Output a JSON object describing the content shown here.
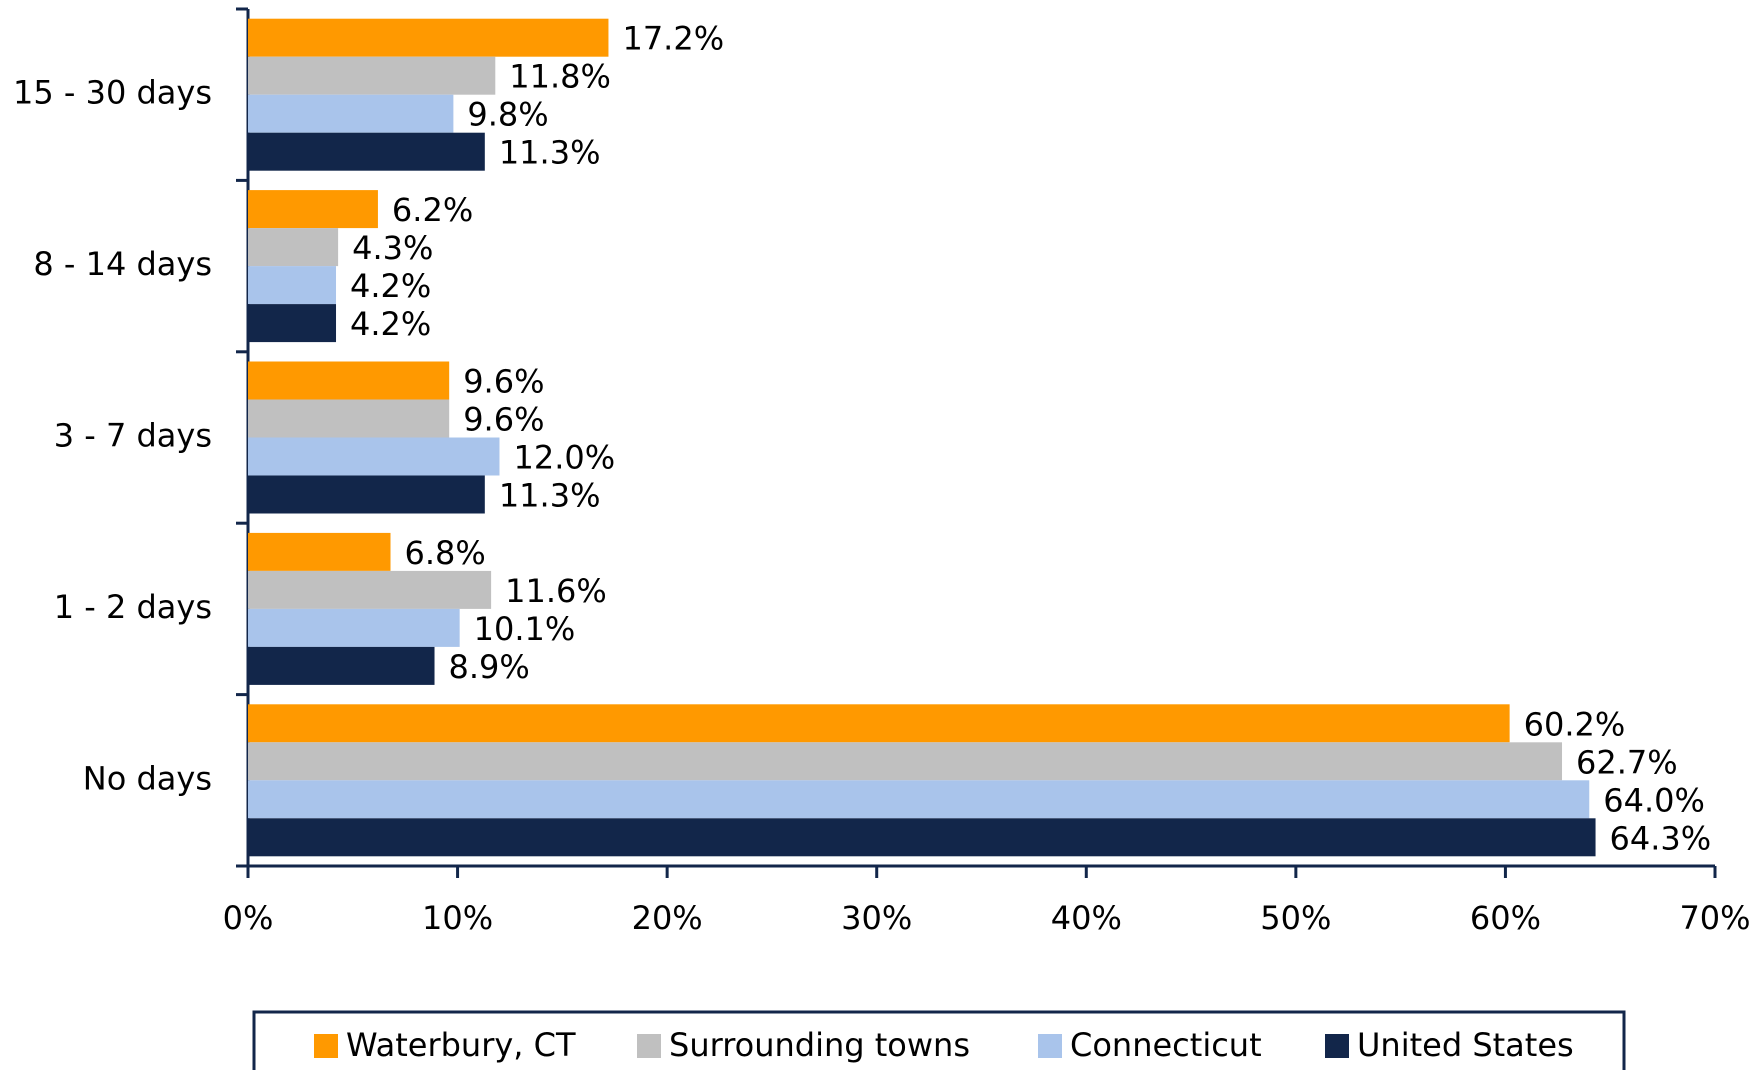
{
  "chart_data": {
    "type": "hbar",
    "categories": [
      "15 - 30 days",
      "8 - 14 days",
      "3 - 7 days",
      "1 - 2 days",
      "No days"
    ],
    "series": [
      {
        "name": "Waterbury, CT",
        "color": "#ff9900",
        "values": [
          17.2,
          6.2,
          9.6,
          6.8,
          60.2
        ],
        "value_labels": [
          "17.2%",
          "6.2%",
          "9.6%",
          "6.8%",
          "60.2%"
        ]
      },
      {
        "name": "Surrounding towns",
        "color": "#c0c0c0",
        "values": [
          11.8,
          4.3,
          9.6,
          11.6,
          62.7
        ],
        "value_labels": [
          "11.8%",
          "4.3%",
          "9.6%",
          "11.6%",
          "62.7%"
        ]
      },
      {
        "name": "Connecticut",
        "color": "#a9c4eb",
        "values": [
          9.8,
          4.2,
          12.0,
          10.1,
          64.0
        ],
        "value_labels": [
          "9.8%",
          "4.2%",
          "12.0%",
          "10.1%",
          "64.0%"
        ]
      },
      {
        "name": "United States",
        "color": "#12264a",
        "values": [
          11.3,
          4.2,
          11.3,
          8.9,
          64.3
        ],
        "value_labels": [
          "11.3%",
          "4.2%",
          "11.3%",
          "8.9%",
          "64.3%"
        ]
      }
    ],
    "xlim": [
      0,
      70
    ],
    "xticks": [
      {
        "value": 0,
        "label": "0%"
      },
      {
        "value": 10,
        "label": "10%"
      },
      {
        "value": 20,
        "label": "20%"
      },
      {
        "value": 30,
        "label": "30%"
      },
      {
        "value": 40,
        "label": "40%"
      },
      {
        "value": 50,
        "label": "50%"
      },
      {
        "value": 60,
        "label": "60%"
      },
      {
        "value": 70,
        "label": "70%"
      }
    ],
    "legend": "bottom"
  }
}
